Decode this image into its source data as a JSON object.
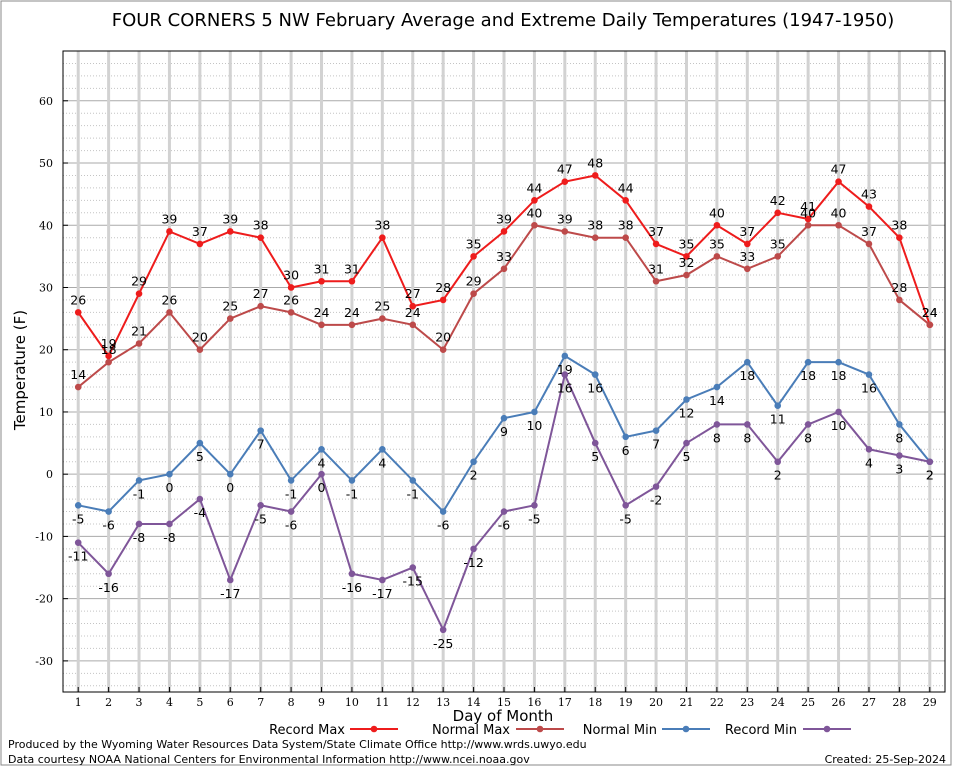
{
  "chart_data": {
    "type": "line",
    "title": "FOUR CORNERS 5 NW February Average and Extreme Daily Temperatures (1947-1950)",
    "xlabel": "Day of Month",
    "ylabel": "Temperature (F)",
    "xlim": [
      0.5,
      29.5
    ],
    "ylim": [
      -35,
      68
    ],
    "yticks": [
      -30,
      -20,
      -10,
      0,
      10,
      20,
      30,
      40,
      50,
      60
    ],
    "x": [
      1,
      2,
      3,
      4,
      5,
      6,
      7,
      8,
      9,
      10,
      11,
      12,
      13,
      14,
      15,
      16,
      17,
      18,
      19,
      20,
      21,
      22,
      23,
      24,
      25,
      26,
      27,
      28,
      29
    ],
    "grid": true,
    "legend_position": "bottom",
    "series": [
      {
        "name": "Record Max",
        "color": "#ee1c1c",
        "label_position": "above",
        "values": [
          26,
          19,
          29,
          39,
          37,
          39,
          38,
          30,
          31,
          31,
          38,
          27,
          28,
          35,
          39,
          44,
          47,
          48,
          44,
          37,
          35,
          40,
          37,
          42,
          41,
          47,
          43,
          38,
          24
        ]
      },
      {
        "name": "Normal Max",
        "color": "#bd4a4a",
        "label_position": "above",
        "values": [
          14,
          18,
          21,
          26,
          20,
          25,
          27,
          26,
          24,
          24,
          25,
          24,
          20,
          29,
          33,
          40,
          39,
          38,
          38,
          31,
          32,
          35,
          33,
          35,
          40,
          40,
          37,
          28,
          24
        ]
      },
      {
        "name": "Normal Min",
        "color": "#4a7db8",
        "label_position": "below",
        "values": [
          -5,
          -6,
          -1,
          0,
          5,
          0,
          7,
          -1,
          4,
          -1,
          4,
          -1,
          -6,
          2,
          9,
          10,
          19,
          16,
          6,
          7,
          12,
          14,
          18,
          11,
          18,
          18,
          16,
          8,
          2
        ]
      },
      {
        "name": "Record Min",
        "color": "#7f5699",
        "label_position": "below",
        "values": [
          -11,
          -16,
          -8,
          -8,
          -4,
          -17,
          -5,
          -6,
          0,
          -16,
          -17,
          -15,
          -25,
          -12,
          -6,
          -5,
          16,
          5,
          -5,
          -2,
          5,
          8,
          8,
          2,
          8,
          10,
          4,
          3,
          2
        ]
      }
    ]
  },
  "footer": {
    "produced_by": "Produced by the Wyoming Water Resources Data System/State Climate Office http://www.wrds.uwyo.edu",
    "courtesy": "Data courtesy NOAA National Centers for Environmental Information http://www.ncei.noaa.gov",
    "created": "Created:  25-Sep-2024"
  }
}
